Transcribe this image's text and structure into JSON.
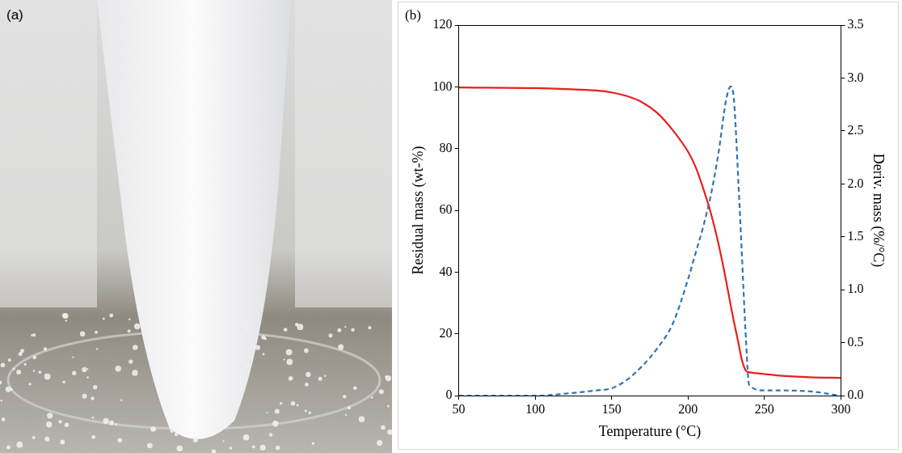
{
  "image": {
    "label": "(a)"
  },
  "chart_data": {
    "type": "line",
    "title": "(b)",
    "x_label": "Temperature (°C)",
    "y_label": "Residual mass (wt-%)",
    "y2_label": "Deriv. mass (%/°C)",
    "x": [
      50,
      100,
      120,
      140,
      150,
      160,
      170,
      180,
      190,
      200,
      205,
      210,
      215,
      220,
      225,
      228,
      230,
      233,
      235,
      238,
      240,
      250,
      260,
      280,
      300
    ],
    "series": [
      {
        "name": "Residual mass",
        "color": "#e8201c",
        "line_style": "solid",
        "values": [
          99.8,
          99.6,
          99.3,
          98.8,
          98.2,
          97,
          95,
          91.5,
          86,
          79,
          74,
          67,
          59,
          49,
          37,
          29,
          24,
          17,
          12,
          8,
          7.6,
          7,
          6.5,
          6,
          5.8
        ]
      },
      {
        "name": "Deriv. mass",
        "color": "#2e75b6",
        "line_style": "dashed",
        "axis": "y2",
        "values": [
          0,
          0,
          0.02,
          0.05,
          0.07,
          0.15,
          0.28,
          0.45,
          0.68,
          1.1,
          1.35,
          1.6,
          1.9,
          2.3,
          2.8,
          2.92,
          2.8,
          2.0,
          1.4,
          0.5,
          0.1,
          0.05,
          0.05,
          0.04,
          0
        ]
      }
    ],
    "xlim": [
      50,
      300
    ],
    "xticks": [
      50,
      100,
      150,
      200,
      250,
      300
    ],
    "ylim": [
      0,
      120
    ],
    "yticks": [
      0,
      20,
      40,
      60,
      80,
      100,
      120
    ],
    "y2lim": [
      0,
      3.5
    ],
    "y2ticks": [
      {
        "value": 0,
        "label": "0.0"
      },
      0.5,
      {
        "value": 1,
        "label": "1.0"
      },
      1.5,
      {
        "value": 2,
        "label": "2.0"
      },
      2.5,
      {
        "value": 3,
        "label": "3.0"
      },
      3.5
    ],
    "grid": false
  }
}
